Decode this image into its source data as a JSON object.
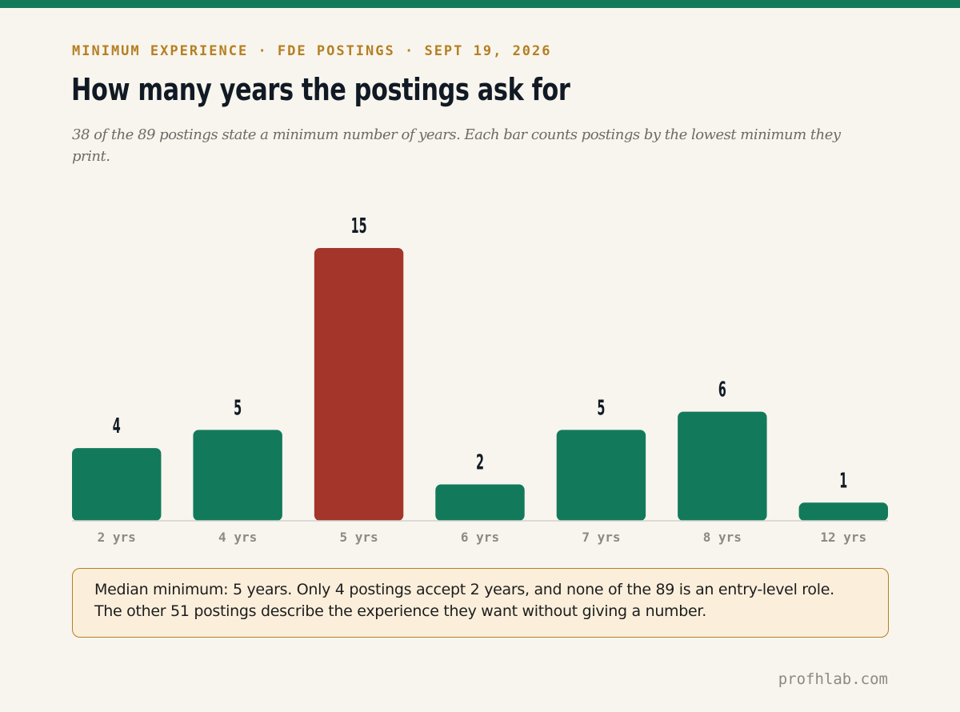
{
  "kicker": "MINIMUM EXPERIENCE · FDE POSTINGS · SEPT 19, 2026",
  "title": "How many years the postings ask for",
  "subtitle": "38 of the 89 postings state a minimum number of years. Each bar counts postings by the lowest minimum they print.",
  "note": "Median minimum: 5 years. Only 4 postings accept 2 years, and none of the 89 is an entry-level role. The other 51 postings describe the experience they want without giving a number.",
  "footer": "profhlab.com",
  "colors": {
    "accent": "#127a5b",
    "highlight": "#a3352b",
    "kicker": "#b57f22",
    "note_bg": "#fbefdc"
  },
  "chart_data": {
    "type": "bar",
    "categories": [
      "2 yrs",
      "4 yrs",
      "5 yrs",
      "6 yrs",
      "7 yrs",
      "8 yrs",
      "12 yrs"
    ],
    "values": [
      4,
      5,
      15,
      2,
      5,
      6,
      1
    ],
    "highlight_category": "5 yrs",
    "ylim": [
      0,
      15
    ],
    "grid": false,
    "legend": "none",
    "data_labels": true
  }
}
